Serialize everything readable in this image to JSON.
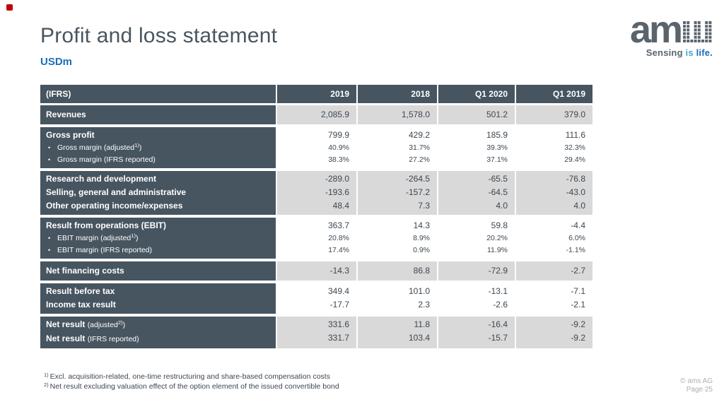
{
  "slide": {
    "title": "Profit and loss statement",
    "subtitle": "USDm",
    "footnotes": [
      {
        "marker": "1)",
        "text": "Excl. acquisition-related, one-time restructuring and share-based compensation costs"
      },
      {
        "marker": "2)",
        "text": "Net result excluding valuation effect of the option element of the issued convertible bond"
      }
    ],
    "footer": {
      "copyright": "© ams AG",
      "page": "Page 25"
    }
  },
  "logo": {
    "word": "am",
    "pixel_glyph": "ams-pixel-s",
    "tagline": {
      "word1": "Sensing",
      "word2": "is",
      "word3": "life."
    }
  },
  "colors": {
    "header_bg": "#475560",
    "row_label_bg": "#475560",
    "value_bg_gray": "#d9d9d9",
    "value_bg_white": "#ffffff",
    "accent_blue": "#1b6fb5",
    "tagline_light_blue": "#41a5dc",
    "title_text": "#4a555f",
    "value_text": "#3d4750",
    "footer_text": "#a9afb5",
    "red_marker": "#c00000"
  },
  "table": {
    "header": {
      "label": "(IFRS)",
      "columns": [
        "2019",
        "2018",
        "Q1 2020",
        "Q1 2019"
      ]
    },
    "blocks": [
      {
        "bg": "gray",
        "rows": [
          {
            "kind": "main",
            "parts": [
              [
                "b",
                "Revenues"
              ]
            ],
            "values": [
              "2,085.9",
              "1,578.0",
              "501.2",
              "379.0"
            ]
          }
        ]
      },
      {
        "bg": "white",
        "rows": [
          {
            "kind": "main",
            "parts": [
              [
                "b",
                "Gross profit"
              ]
            ],
            "values": [
              "799.9",
              "429.2",
              "185.9",
              "111.6"
            ]
          },
          {
            "kind": "sub",
            "parts": [
              [
                "r",
                "Gross margin (adjusted"
              ],
              [
                "sup",
                "1)"
              ],
              [
                "r",
                ")"
              ]
            ],
            "values": [
              "40.9%",
              "31.7%",
              "39.3%",
              "32.3%"
            ]
          },
          {
            "kind": "sub",
            "parts": [
              [
                "r",
                "Gross margin (IFRS reported)"
              ]
            ],
            "values": [
              "38.3%",
              "27.2%",
              "37.1%",
              "29.4%"
            ]
          }
        ]
      },
      {
        "bg": "gray",
        "rows": [
          {
            "kind": "main",
            "parts": [
              [
                "b",
                "Research and development"
              ]
            ],
            "values": [
              "-289.0",
              "-264.5",
              "-65.5",
              "-76.8"
            ]
          },
          {
            "kind": "main",
            "parts": [
              [
                "b",
                "Selling, general and administrative"
              ]
            ],
            "values": [
              "-193.6",
              "-157.2",
              "-64.5",
              "-43.0"
            ]
          },
          {
            "kind": "main",
            "parts": [
              [
                "b",
                "Other operating income/expenses"
              ]
            ],
            "values": [
              "48.4",
              "7.3",
              "4.0",
              "4.0"
            ]
          }
        ]
      },
      {
        "bg": "white",
        "rows": [
          {
            "kind": "main",
            "parts": [
              [
                "b",
                "Result from operations (EBIT)"
              ]
            ],
            "values": [
              "363.7",
              "14.3",
              "59.8",
              "-4.4"
            ]
          },
          {
            "kind": "sub",
            "parts": [
              [
                "r",
                "EBIT margin (adjusted"
              ],
              [
                "sup",
                "1)"
              ],
              [
                "r",
                ")"
              ]
            ],
            "values": [
              "20.8%",
              "8.9%",
              "20.2%",
              "6.0%"
            ]
          },
          {
            "kind": "sub",
            "parts": [
              [
                "r",
                "EBIT margin (IFRS reported)"
              ]
            ],
            "values": [
              "17.4%",
              "0.9%",
              "11.9%",
              "-1.1%"
            ]
          }
        ]
      },
      {
        "bg": "gray",
        "rows": [
          {
            "kind": "main",
            "parts": [
              [
                "b",
                "Net financing costs"
              ]
            ],
            "values": [
              "-14.3",
              "86.8",
              "-72.9",
              "-2.7"
            ]
          }
        ]
      },
      {
        "bg": "white",
        "rows": [
          {
            "kind": "main",
            "parts": [
              [
                "b",
                "Result before tax"
              ]
            ],
            "values": [
              "349.4",
              "101.0",
              "-13.1",
              "-7.1"
            ]
          },
          {
            "kind": "main",
            "parts": [
              [
                "b",
                "Income tax result"
              ]
            ],
            "values": [
              "-17.7",
              "2.3",
              "-2.6",
              "-2.1"
            ]
          }
        ]
      },
      {
        "bg": "gray",
        "rows": [
          {
            "kind": "main",
            "parts": [
              [
                "b",
                "Net result "
              ],
              [
                "r",
                "(adjusted"
              ],
              [
                "sup",
                "2)"
              ],
              [
                "r",
                ")"
              ]
            ],
            "values": [
              "331.6",
              "11.8",
              "-16.4",
              "-9.2"
            ]
          },
          {
            "kind": "main",
            "parts": [
              [
                "b",
                "Net result "
              ],
              [
                "r",
                "(IFRS reported)"
              ]
            ],
            "values": [
              "331.7",
              "103.4",
              "-15.7",
              "-9.2"
            ]
          }
        ]
      }
    ]
  }
}
